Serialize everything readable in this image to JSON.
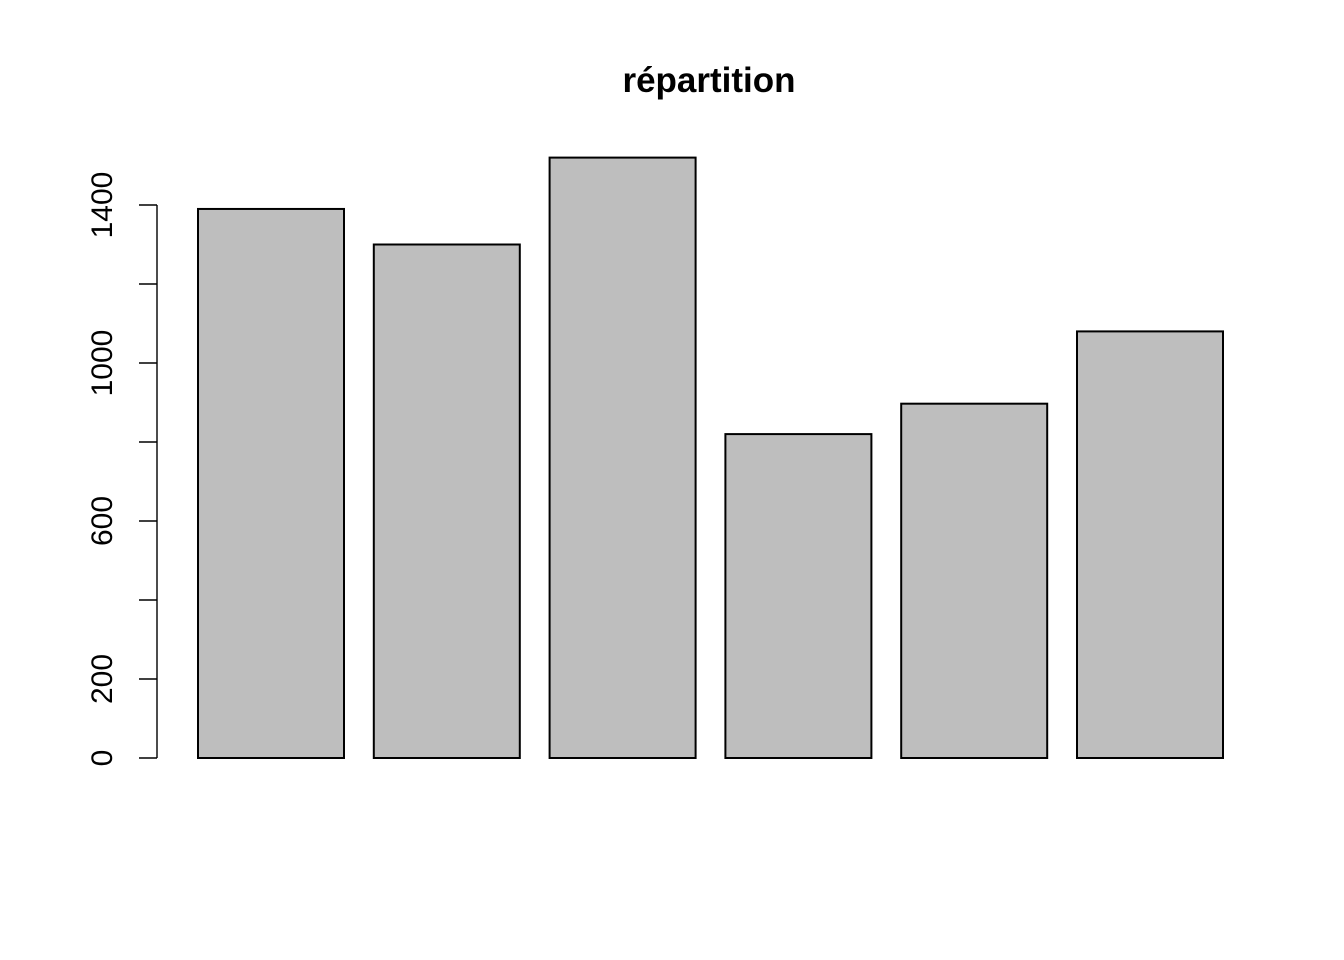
{
  "chart_data": {
    "type": "bar",
    "title": "répartition",
    "xlabel": "",
    "ylabel": "",
    "categories": [
      "",
      "",
      "",
      "",
      "",
      ""
    ],
    "values": [
      1390,
      1300,
      1520,
      820,
      897,
      1080
    ],
    "ylim": [
      0,
      1520
    ],
    "y_ticks": [
      0,
      200,
      400,
      600,
      800,
      1000,
      1200,
      1400
    ],
    "y_tick_labels": [
      {
        "value": 0,
        "label": "0"
      },
      {
        "value": 200,
        "label": "200"
      },
      {
        "value": 600,
        "label": "600"
      },
      {
        "value": 1000,
        "label": "1000"
      },
      {
        "value": 1400,
        "label": "1400"
      }
    ],
    "grid": false,
    "colors": {
      "bar_fill": "#bebebe",
      "bar_stroke": "#000000",
      "axis": "#000000",
      "background": "#ffffff"
    }
  }
}
